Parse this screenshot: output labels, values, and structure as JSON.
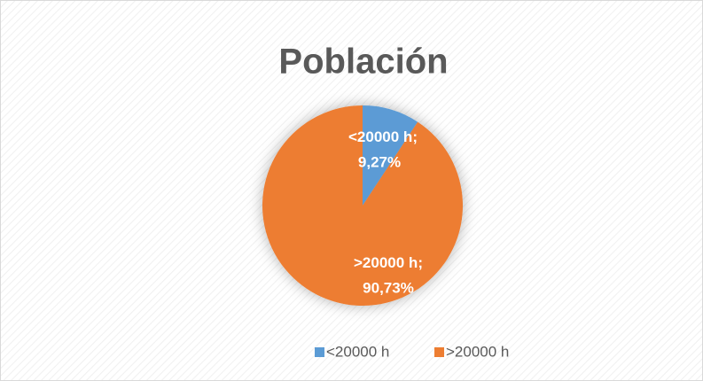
{
  "chart_data": {
    "type": "pie",
    "title": "Población",
    "categories": [
      "<20000 h",
      ">20000 h"
    ],
    "values": [
      9.27,
      90.73
    ],
    "value_labels": [
      "9,27%",
      "90,73%"
    ],
    "label_separator": ";",
    "colors": [
      "#5b9bd5",
      "#ed7d31"
    ],
    "legend": "bottom"
  }
}
